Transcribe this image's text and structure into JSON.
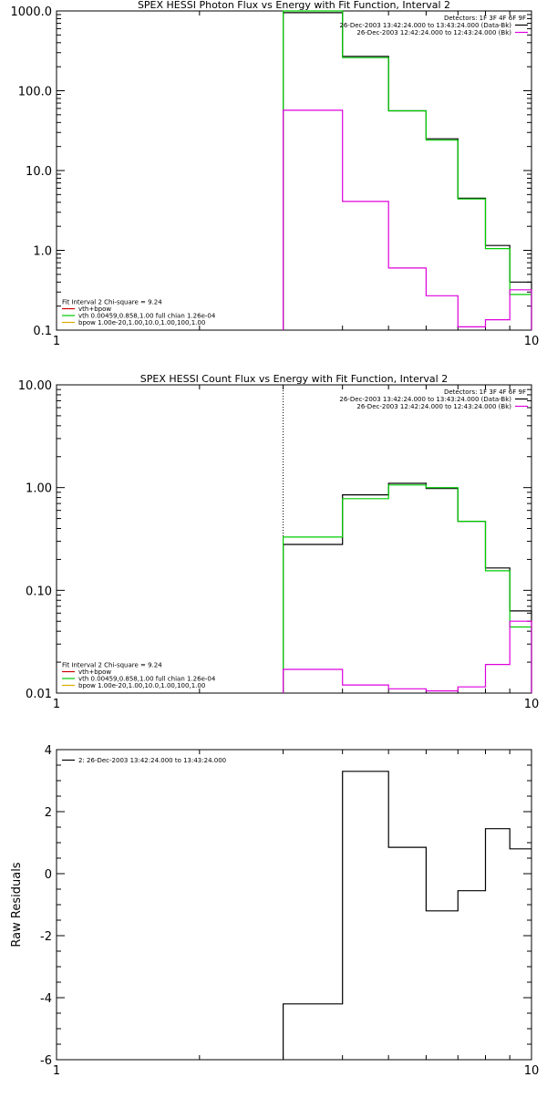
{
  "colors": {
    "data": "#000000",
    "green": "#00cc00",
    "magenta": "#dd00dd",
    "orange": "#ddaa00",
    "red": "#cc0000"
  },
  "chart_data": [
    {
      "type": "line",
      "scale": "log-log",
      "title": "SPEX HESSI Photon Flux vs Energy with Fit Function, Interval 2",
      "xlabel": "",
      "ylabel": "",
      "xlim": [
        1,
        10
      ],
      "ylim": [
        0.1,
        1000
      ],
      "x_tick_labels": [
        {
          "v": 1,
          "t": "1"
        },
        {
          "v": 10,
          "t": "10"
        }
      ],
      "y_tick_labels": [
        {
          "v": 0.1,
          "t": "0.1"
        },
        {
          "v": 1,
          "t": "1.0"
        },
        {
          "v": 10,
          "t": "10.0"
        },
        {
          "v": 100,
          "t": "100.0"
        },
        {
          "v": 1000,
          "t": "1000.0"
        }
      ],
      "vline": 3,
      "legend_topright": [
        {
          "text": "Detectors: 1F 3F 4F 6F 9F",
          "color": ""
        },
        {
          "text": "26-Dec-2003 13:42:24.000 to 13:43:24.000 (Data-Bk)",
          "color": "#000000"
        },
        {
          "text": "26-Dec-2003 12:42:24.000 to 12:43:24.000 (Bk)",
          "color": "#dd00dd"
        }
      ],
      "legend_bottomleft": [
        {
          "text": "Fit Interval 2   Chi-square = 9.24",
          "color": ""
        },
        {
          "text": "vth+bpow",
          "color": "#cc0000"
        },
        {
          "text": "vth 0.00459,0.858,1.00  full chian 1.26e-04",
          "color": "#00cc00"
        },
        {
          "text": "bpow 1.00e-20,1.00,10.0,1.00,100,1.00",
          "color": "#ddaa00"
        }
      ],
      "series": [
        {
          "color": "#000000",
          "edges": [
            3,
            4,
            5,
            6,
            7,
            8,
            9,
            10
          ],
          "values": [
            950,
            270,
            56,
            25,
            4.5,
            1.15,
            0.4
          ]
        },
        {
          "color": "#00cc00",
          "edges": [
            3,
            4,
            5,
            6,
            7,
            8,
            9,
            10
          ],
          "values": [
            1000,
            260,
            56,
            24,
            4.4,
            1.05,
            0.28
          ]
        },
        {
          "color": "#dd00dd",
          "edges": [
            3,
            4,
            5,
            6,
            7,
            8,
            9,
            10
          ],
          "values": [
            57,
            4.1,
            0.6,
            0.27,
            0.11,
            0.135,
            0.32
          ]
        }
      ]
    },
    {
      "type": "line",
      "scale": "log-log",
      "title": "SPEX HESSI Count Flux vs Energy with Fit Function, Interval 2",
      "xlabel": "",
      "ylabel": "",
      "xlim": [
        1,
        10
      ],
      "ylim": [
        0.01,
        10
      ],
      "x_tick_labels": [
        {
          "v": 1,
          "t": "1"
        },
        {
          "v": 10,
          "t": "10"
        }
      ],
      "y_tick_labels": [
        {
          "v": 0.01,
          "t": "0.01"
        },
        {
          "v": 0.1,
          "t": "0.10"
        },
        {
          "v": 1,
          "t": "1.00"
        },
        {
          "v": 10,
          "t": "10.00"
        }
      ],
      "vline": 3,
      "legend_topright": [
        {
          "text": "Detectors: 1F 3F 4F 6F 9F",
          "color": ""
        },
        {
          "text": "26-Dec-2003 13:42:24.000 to 13:43:24.000 (Data-Bk)",
          "color": "#000000"
        },
        {
          "text": "26-Dec-2003 12:42:24.000 to 12:43:24.000 (Bk)",
          "color": "#dd00dd"
        }
      ],
      "legend_bottomleft": [
        {
          "text": "Fit Interval 2   Chi-square = 9.24",
          "color": ""
        },
        {
          "text": "vth+bpow",
          "color": "#cc0000"
        },
        {
          "text": "vth 0.00459,0.858,1.00  full chian 1.26e-04",
          "color": "#00cc00"
        },
        {
          "text": "bpow 1.00e-20,1.00,10.0,1.00,100,1.00",
          "color": "#ddaa00"
        }
      ],
      "series": [
        {
          "color": "#000000",
          "edges": [
            3,
            4,
            5,
            6,
            7,
            8,
            9,
            10
          ],
          "values": [
            0.28,
            0.85,
            1.1,
            0.98,
            0.47,
            0.165,
            0.063
          ]
        },
        {
          "color": "#00cc00",
          "edges": [
            3,
            4,
            5,
            6,
            7,
            8,
            9,
            10
          ],
          "values": [
            0.33,
            0.78,
            1.06,
            1.0,
            0.47,
            0.155,
            0.044
          ]
        },
        {
          "color": "#dd00dd",
          "edges": [
            3,
            4,
            5,
            6,
            7,
            8,
            9,
            10
          ],
          "values": [
            0.017,
            0.012,
            0.011,
            0.0105,
            0.0115,
            0.019,
            0.05
          ]
        }
      ]
    },
    {
      "type": "line",
      "scale": "log-x",
      "title": "",
      "xlabel": "",
      "ylabel": "Raw Residuals",
      "xlim": [
        1,
        10
      ],
      "ylim": [
        -6,
        4
      ],
      "x_tick_labels": [
        {
          "v": 1,
          "t": "1"
        },
        {
          "v": 10,
          "t": "10"
        }
      ],
      "y_tick_labels": [
        {
          "v": -6,
          "t": "-6"
        },
        {
          "v": -4,
          "t": "-4"
        },
        {
          "v": -2,
          "t": "-2"
        },
        {
          "v": 0,
          "t": "0"
        },
        {
          "v": 2,
          "t": "2"
        },
        {
          "v": 4,
          "t": "4"
        }
      ],
      "legend_topleft": [
        {
          "text": "2: 26-Dec-2003 13:42:24.000 to 13:43:24.000",
          "color": "#000000"
        }
      ],
      "series": [
        {
          "color": "#000000",
          "edges": [
            3,
            4,
            5,
            6,
            7,
            8,
            9,
            10
          ],
          "values": [
            -4.2,
            3.3,
            0.85,
            -1.2,
            -0.55,
            1.45,
            0.8
          ]
        }
      ]
    }
  ]
}
